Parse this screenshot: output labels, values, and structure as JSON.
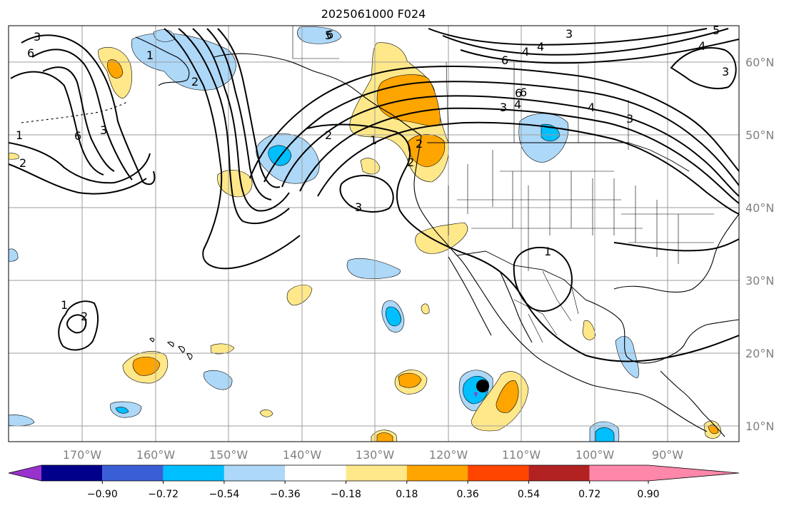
{
  "title": "2025061000 F024",
  "map": {
    "longitude_labels": [
      "170°W",
      "160°W",
      "150°W",
      "140°W",
      "130°W",
      "120°W",
      "110°W",
      "100°W",
      "90°W"
    ],
    "latitude_labels": [
      "60°N",
      "50°N",
      "40°N",
      "30°N",
      "20°N",
      "10°N"
    ],
    "contour_labels": [
      "3",
      "6",
      "1",
      "2",
      "6",
      "3",
      "5",
      "4",
      "6",
      "3",
      "4",
      "3",
      "6",
      "4",
      "3",
      "2",
      "1",
      "2",
      "1",
      "2",
      "6",
      "4",
      "3",
      "1",
      "2",
      "1",
      "2",
      "5",
      "6",
      "4",
      "3"
    ],
    "marker": "circle"
  },
  "colorbar": {
    "tick_labels": [
      "−0.90",
      "−0.72",
      "−0.54",
      "−0.36",
      "−0.18",
      "0.18",
      "0.36",
      "0.54",
      "0.72",
      "0.90"
    ],
    "colors": [
      "#9932cc",
      "#00008b",
      "#3a5ed6",
      "#00bfff",
      "#add8f8",
      "#ffffff",
      "#ffe88a",
      "#ffa500",
      "#ff4500",
      "#b22222",
      "#ff88aa"
    ]
  }
}
